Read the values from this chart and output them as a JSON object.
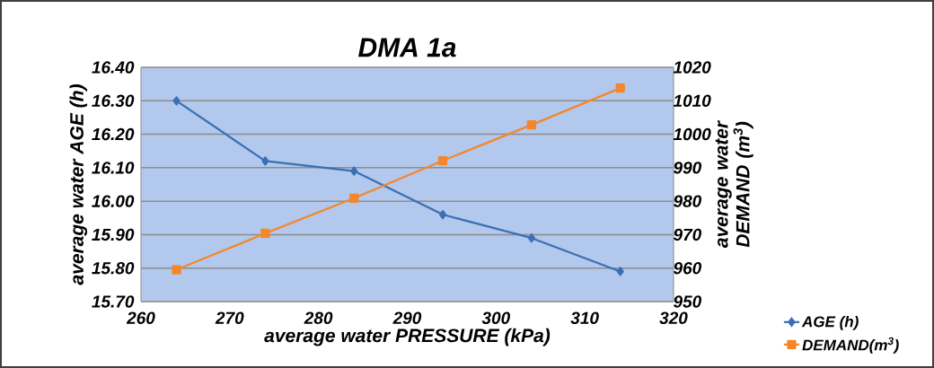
{
  "chart_data": {
    "type": "line",
    "title": "DMA 1a",
    "xlabel": "average water PRESSURE (kPa)",
    "ylabel": "average water AGE (h)",
    "y2label": "average water DEMAND (m$^{3}$)",
    "x": [
      264,
      274,
      284,
      294,
      304,
      314
    ],
    "series": [
      {
        "name": "AGE (h)",
        "color": "#3a6fb5",
        "marker": "diamond",
        "values": [
          16.3,
          16.12,
          16.09,
          15.96,
          15.89,
          15.79
        ]
      },
      {
        "name": "DEMAND(m$^{3}$)",
        "color": "#f5862a",
        "marker": "square",
        "axis": "y2",
        "values": [
          959.5,
          970.4,
          980.9,
          992.1,
          1002.8,
          1013.8
        ]
      }
    ],
    "xlim": [
      260,
      320
    ],
    "xticks": [
      260,
      270,
      280,
      290,
      300,
      310,
      320
    ],
    "ylim": [
      15.7,
      16.4
    ],
    "yticks": [
      {
        "value": 15.7,
        "label": "15.70"
      },
      {
        "value": 15.8,
        "label": "15.80"
      },
      {
        "value": 15.9,
        "label": "15.90"
      },
      {
        "value": 16.0,
        "label": "16.00"
      },
      {
        "value": 16.1,
        "label": "16.10"
      },
      {
        "value": 16.2,
        "label": "16.20"
      },
      {
        "value": 16.3,
        "label": "16.30"
      },
      {
        "value": 16.4,
        "label": "16.40"
      }
    ],
    "y2lim": [
      950,
      1020
    ],
    "y2ticks": [
      950,
      960,
      970,
      980,
      990,
      1000,
      1010,
      1020
    ],
    "grid": "y",
    "legend": "bottom right",
    "line_style": "solid"
  }
}
